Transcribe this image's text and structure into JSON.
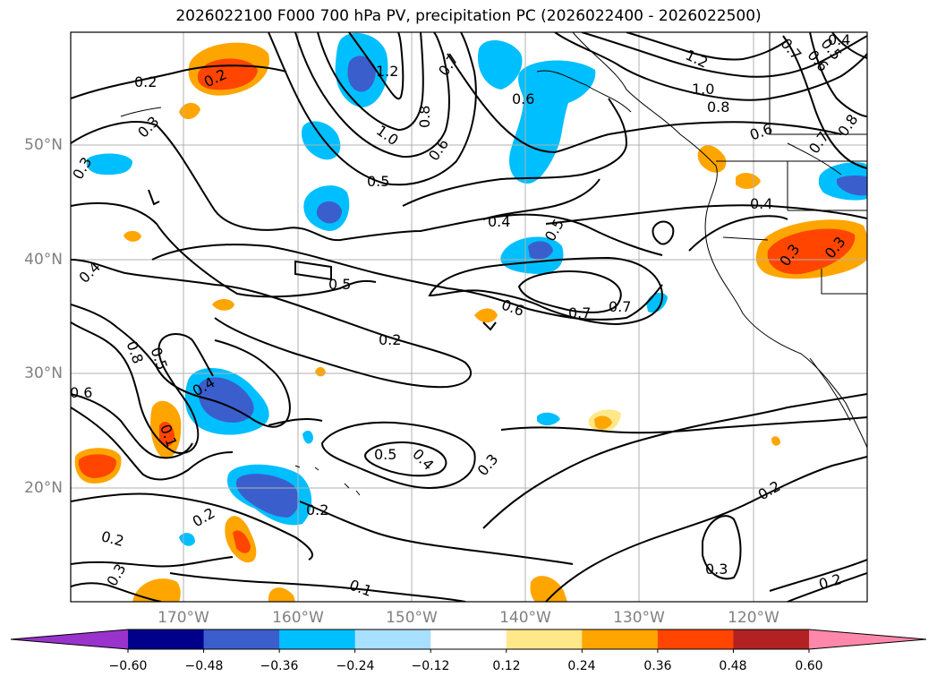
{
  "title": "2026022100 F000 700 hPa PV, precipitation PC (2026022400 - 2026022500)",
  "lat_labels": [
    "50°N",
    "40°N",
    "30°N",
    "20°N"
  ],
  "lon_labels": [
    "170°W",
    "160°W",
    "150°W",
    "140°W",
    "130°W",
    "120°W"
  ],
  "colorbar": {
    "ticks": [
      "−0.60",
      "−0.48",
      "−0.36",
      "−0.24",
      "−0.12",
      "0.12",
      "0.24",
      "0.36",
      "0.48",
      "0.60"
    ],
    "colors": [
      "#9933cc",
      "#00008b",
      "#3a5fcd",
      "#00bfff",
      "#a8e0ff",
      "#ffffff",
      "#ffe88a",
      "#ffa500",
      "#ff4500",
      "#b22222",
      "#ff88aa"
    ]
  },
  "contour_labels": [
    {
      "text": "0.2"
    },
    {
      "text": "0.2"
    },
    {
      "text": "0.3"
    },
    {
      "text": "0.3"
    },
    {
      "text": "1.2"
    },
    {
      "text": "1.0"
    },
    {
      "text": "0.8"
    },
    {
      "text": "0.7"
    },
    {
      "text": "0.6"
    },
    {
      "text": "0.5"
    },
    {
      "text": "0.6"
    },
    {
      "text": "1.2"
    },
    {
      "text": "1.0"
    },
    {
      "text": "0.8"
    },
    {
      "text": "0.6"
    },
    {
      "text": "0.7"
    },
    {
      "text": "0.7"
    },
    {
      "text": "0.6"
    },
    {
      "text": "0.5"
    },
    {
      "text": "0.4"
    },
    {
      "text": "0.8"
    },
    {
      "text": "0.4"
    },
    {
      "text": "0.4"
    },
    {
      "text": "0.5"
    },
    {
      "text": "0.3"
    },
    {
      "text": "0.3"
    },
    {
      "text": "0.4"
    },
    {
      "text": "0.5"
    },
    {
      "text": "0.6"
    },
    {
      "text": "0.7"
    },
    {
      "text": "0.7"
    },
    {
      "text": "0.2"
    },
    {
      "text": "0.8"
    },
    {
      "text": "0.5"
    },
    {
      "text": "0.4"
    },
    {
      "text": "0.6"
    },
    {
      "text": "0.1"
    },
    {
      "text": "0.5"
    },
    {
      "text": "0.4"
    },
    {
      "text": "0.3"
    },
    {
      "text": "0.2"
    },
    {
      "text": "0.2"
    },
    {
      "text": "0.2"
    },
    {
      "text": "0.2"
    },
    {
      "text": "0.3"
    },
    {
      "text": "0.1"
    },
    {
      "text": "0.3"
    },
    {
      "text": "0.2"
    }
  ]
}
